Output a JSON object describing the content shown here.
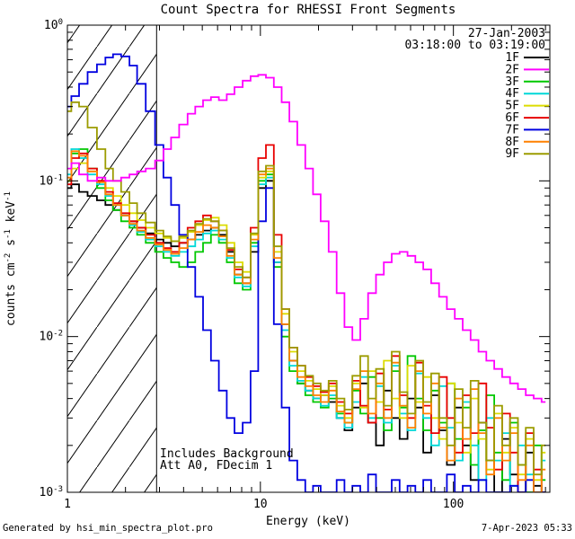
{
  "annotations": {
    "date": "27-Jan-2003",
    "time_range": "03:18:00 to 03:19:00",
    "note1": "Includes Background",
    "note2": "Att A0, FDecim 1"
  },
  "footer": {
    "generated_by": "Generated by hsi_min_spectra_plot.pro",
    "timestamp": "7-Apr-2023 05:33"
  },
  "chart_data": {
    "type": "line",
    "title": "Count Spectra for RHESSI Front Segments",
    "xlabel": "Energy (keV)",
    "ylabel": "counts cm^-2 s^-1 keV^-1",
    "x_scale": "log",
    "y_scale": "log",
    "xlim": [
      1,
      316
    ],
    "ylim": [
      0.001,
      1
    ],
    "grid": false,
    "legend_position": "top-right-inside",
    "x_ticks": [
      {
        "value": 1,
        "label": "1"
      },
      {
        "value": 10,
        "label": "10"
      },
      {
        "value": 100,
        "label": "100"
      }
    ],
    "y_ticks": [
      {
        "value": 1,
        "label": "10^0"
      },
      {
        "value": 0.1,
        "label": "10^-1"
      },
      {
        "value": 0.01,
        "label": "10^-2"
      },
      {
        "value": 0.001,
        "label": "10^-3"
      }
    ],
    "hatch_region": {
      "from": 1,
      "to": 2.9
    },
    "energies": [
      1.0,
      1.1,
      1.2,
      1.35,
      1.5,
      1.65,
      1.8,
      2.0,
      2.2,
      2.4,
      2.7,
      3.0,
      3.3,
      3.6,
      4.0,
      4.4,
      4.8,
      5.3,
      5.8,
      6.4,
      7.0,
      7.7,
      8.5,
      9.3,
      10.2,
      11.2,
      12.3,
      13.5,
      14.8,
      16.3,
      17.9,
      19.6,
      21.5,
      23.7,
      26.0,
      28.6,
      31.4,
      34.5,
      37.9,
      41.6,
      45.7,
      50.2,
      55.2,
      60.6,
      66.6,
      73.2,
      80.4,
      88.3,
      97.0,
      106.6,
      117.1,
      128.7,
      141.4,
      155.3,
      170.6,
      187.5,
      206.0,
      226.3,
      248.6,
      273.2,
      300.0
    ],
    "series": [
      {
        "name": "1F",
        "color": "#000000",
        "values": [
          0.09,
          0.095,
          0.085,
          0.08,
          0.075,
          0.07,
          0.065,
          0.06,
          0.055,
          0.05,
          0.046,
          0.042,
          0.04,
          0.038,
          0.04,
          0.042,
          0.045,
          0.048,
          0.05,
          0.045,
          0.035,
          0.025,
          0.022,
          0.035,
          0.09,
          0.1,
          0.03,
          0.012,
          0.007,
          0.005,
          0.0045,
          0.004,
          0.0042,
          0.0038,
          0.003,
          0.0025,
          0.0035,
          0.005,
          0.0028,
          0.002,
          0.0045,
          0.003,
          0.0022,
          0.004,
          0.0035,
          0.0018,
          0.0042,
          0.0025,
          0.0015,
          0.0035,
          0.002,
          0.0012,
          0.0028,
          0.0016,
          0.001,
          0.0022,
          0.0013,
          0.0009,
          0.0018,
          0.0011,
          0.0008
        ]
      },
      {
        "name": "2F",
        "color": "#ff00ff",
        "values": [
          0.12,
          0.13,
          0.11,
          0.1,
          0.105,
          0.1,
          0.1,
          0.105,
          0.11,
          0.115,
          0.12,
          0.135,
          0.16,
          0.19,
          0.23,
          0.27,
          0.3,
          0.33,
          0.345,
          0.33,
          0.36,
          0.4,
          0.44,
          0.47,
          0.48,
          0.46,
          0.4,
          0.32,
          0.24,
          0.17,
          0.12,
          0.082,
          0.055,
          0.035,
          0.019,
          0.0115,
          0.0095,
          0.013,
          0.019,
          0.025,
          0.03,
          0.034,
          0.035,
          0.033,
          0.03,
          0.027,
          0.022,
          0.018,
          0.015,
          0.013,
          0.011,
          0.0095,
          0.008,
          0.007,
          0.0062,
          0.0055,
          0.005,
          0.0046,
          0.0042,
          0.004,
          0.0038
        ]
      },
      {
        "name": "3F",
        "color": "#00c800",
        "values": [
          0.1,
          0.15,
          0.16,
          0.12,
          0.09,
          0.075,
          0.065,
          0.055,
          0.05,
          0.045,
          0.04,
          0.035,
          0.032,
          0.03,
          0.028,
          0.03,
          0.035,
          0.04,
          0.045,
          0.04,
          0.03,
          0.022,
          0.02,
          0.04,
          0.1,
          0.11,
          0.028,
          0.01,
          0.006,
          0.005,
          0.0042,
          0.0038,
          0.0035,
          0.004,
          0.0032,
          0.0028,
          0.0045,
          0.0032,
          0.0055,
          0.003,
          0.0025,
          0.006,
          0.0035,
          0.0075,
          0.004,
          0.0025,
          0.0045,
          0.0028,
          0.005,
          0.0022,
          0.0035,
          0.0015,
          0.0025,
          0.0042,
          0.0018,
          0.0012,
          0.0028,
          0.0015,
          0.001,
          0.002,
          0.0012
        ]
      },
      {
        "name": "4F",
        "color": "#00d8d8",
        "values": [
          0.11,
          0.16,
          0.14,
          0.11,
          0.095,
          0.08,
          0.07,
          0.06,
          0.052,
          0.047,
          0.042,
          0.038,
          0.035,
          0.033,
          0.035,
          0.038,
          0.042,
          0.046,
          0.048,
          0.042,
          0.032,
          0.024,
          0.021,
          0.038,
          0.095,
          0.105,
          0.03,
          0.011,
          0.0065,
          0.0052,
          0.0045,
          0.004,
          0.0036,
          0.0042,
          0.003,
          0.0026,
          0.0038,
          0.0055,
          0.003,
          0.0048,
          0.0028,
          0.0065,
          0.0032,
          0.0025,
          0.0058,
          0.003,
          0.002,
          0.0048,
          0.0026,
          0.0016,
          0.0038,
          0.002,
          0.0012,
          0.003,
          0.0016,
          0.0024,
          0.0011,
          0.002,
          0.0013,
          0.0009,
          0.0016
        ]
      },
      {
        "name": "5F",
        "color": "#dcdc00",
        "values": [
          0.1,
          0.12,
          0.13,
          0.115,
          0.1,
          0.09,
          0.08,
          0.07,
          0.062,
          0.056,
          0.05,
          0.046,
          0.043,
          0.041,
          0.043,
          0.047,
          0.052,
          0.056,
          0.058,
          0.052,
          0.04,
          0.03,
          0.026,
          0.045,
          0.105,
          0.115,
          0.035,
          0.014,
          0.008,
          0.006,
          0.0052,
          0.0046,
          0.0042,
          0.0048,
          0.0036,
          0.003,
          0.005,
          0.0035,
          0.006,
          0.0038,
          0.007,
          0.004,
          0.003,
          0.0065,
          0.0038,
          0.0055,
          0.003,
          0.0022,
          0.005,
          0.0028,
          0.0018,
          0.004,
          0.0022,
          0.0014,
          0.0032,
          0.0018,
          0.0026,
          0.0013,
          0.0022,
          0.0012,
          0.0018
        ]
      },
      {
        "name": "6F",
        "color": "#e80000",
        "values": [
          0.095,
          0.14,
          0.15,
          0.12,
          0.1,
          0.085,
          0.072,
          0.062,
          0.055,
          0.05,
          0.045,
          0.04,
          0.037,
          0.035,
          0.04,
          0.05,
          0.055,
          0.06,
          0.055,
          0.048,
          0.036,
          0.027,
          0.024,
          0.05,
          0.14,
          0.17,
          0.045,
          0.015,
          0.0085,
          0.0065,
          0.0055,
          0.0048,
          0.0044,
          0.005,
          0.0038,
          0.0032,
          0.0052,
          0.0036,
          0.0028,
          0.0058,
          0.0034,
          0.0075,
          0.0042,
          0.003,
          0.0068,
          0.0036,
          0.0024,
          0.0055,
          0.003,
          0.0018,
          0.0042,
          0.0024,
          0.005,
          0.0026,
          0.0014,
          0.0032,
          0.0018,
          0.001,
          0.0024,
          0.0014,
          0.0009
        ]
      },
      {
        "name": "7F",
        "color": "#0000e0",
        "values": [
          0.3,
          0.35,
          0.42,
          0.5,
          0.56,
          0.62,
          0.65,
          0.63,
          0.55,
          0.42,
          0.28,
          0.17,
          0.105,
          0.07,
          0.045,
          0.028,
          0.018,
          0.011,
          0.007,
          0.0045,
          0.003,
          0.0024,
          0.0028,
          0.006,
          0.055,
          0.09,
          0.012,
          0.0035,
          0.0016,
          0.0012,
          0.001,
          0.0011,
          0.001,
          0.0009,
          0.0012,
          0.0008,
          0.0011,
          0.0009,
          0.0013,
          0.0008,
          0.001,
          0.0012,
          0.0008,
          0.0011,
          0.0009,
          0.0012,
          0.0008,
          0.001,
          0.0013,
          0.0009,
          0.0011,
          0.0008,
          0.0012,
          0.0009,
          0.001,
          0.0008,
          0.0011,
          0.0009,
          0.0012,
          0.0008,
          0.001
        ]
      },
      {
        "name": "8F",
        "color": "#ff8000",
        "values": [
          0.105,
          0.155,
          0.145,
          0.115,
          0.098,
          0.082,
          0.07,
          0.06,
          0.053,
          0.048,
          0.043,
          0.039,
          0.036,
          0.034,
          0.037,
          0.042,
          0.047,
          0.052,
          0.05,
          0.044,
          0.033,
          0.025,
          0.022,
          0.042,
          0.11,
          0.12,
          0.032,
          0.012,
          0.007,
          0.0055,
          0.0048,
          0.0042,
          0.0038,
          0.0045,
          0.0033,
          0.0028,
          0.0046,
          0.006,
          0.0032,
          0.005,
          0.003,
          0.0068,
          0.0036,
          0.0026,
          0.006,
          0.0032,
          0.005,
          0.0026,
          0.0016,
          0.004,
          0.0022,
          0.0046,
          0.0024,
          0.0013,
          0.003,
          0.0016,
          0.0024,
          0.0012,
          0.002,
          0.001,
          0.0014
        ]
      },
      {
        "name": "9F",
        "color": "#9c9c00",
        "values": [
          0.28,
          0.32,
          0.3,
          0.22,
          0.16,
          0.12,
          0.1,
          0.085,
          0.072,
          0.062,
          0.054,
          0.048,
          0.044,
          0.041,
          0.044,
          0.048,
          0.053,
          0.057,
          0.055,
          0.048,
          0.037,
          0.028,
          0.024,
          0.046,
          0.115,
          0.125,
          0.038,
          0.015,
          0.0085,
          0.0065,
          0.0056,
          0.005,
          0.0045,
          0.0052,
          0.004,
          0.0034,
          0.0056,
          0.0075,
          0.004,
          0.0062,
          0.0036,
          0.008,
          0.0044,
          0.0032,
          0.007,
          0.0038,
          0.0058,
          0.003,
          0.002,
          0.0046,
          0.0026,
          0.0052,
          0.0028,
          0.0016,
          0.0036,
          0.002,
          0.003,
          0.0015,
          0.0026,
          0.0013,
          0.002
        ]
      }
    ]
  }
}
